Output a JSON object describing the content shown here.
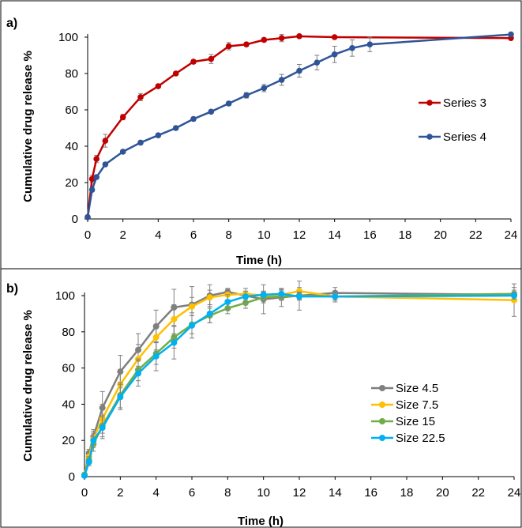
{
  "chart_data": [
    {
      "panel_label": "a)",
      "type": "line",
      "xlabel": "Time (h)",
      "ylabel": "Cumulative drug release %",
      "xlim": [
        0,
        24
      ],
      "ylim": [
        0,
        100
      ],
      "x_ticks": [
        0,
        2,
        4,
        6,
        8,
        10,
        12,
        14,
        16,
        18,
        20,
        22,
        24
      ],
      "y_ticks": [
        0,
        20,
        40,
        60,
        80,
        100
      ],
      "grid": false,
      "legend_position": "right",
      "series": [
        {
          "name": "Series 3",
          "color": "#C00000",
          "x": [
            0,
            0.25,
            0.5,
            1,
            2,
            3,
            4,
            5,
            6,
            7,
            8,
            9,
            10,
            11,
            12,
            14,
            24
          ],
          "y": [
            1,
            22,
            33,
            43,
            56,
            67,
            73,
            80,
            86.5,
            88,
            95,
            96,
            98.5,
            99.5,
            100.5,
            100,
            99.5
          ],
          "error": [
            1,
            2,
            2,
            3.5,
            1.5,
            2,
            1,
            1,
            1,
            2.5,
            2,
            1,
            1,
            2,
            0.5,
            0.5,
            0.5
          ]
        },
        {
          "name": "Series 4",
          "color": "#2F5597",
          "x": [
            0,
            0.25,
            0.5,
            1,
            2,
            3,
            4,
            5,
            6,
            7,
            8,
            9,
            10,
            11,
            12,
            13,
            14,
            15,
            16,
            24
          ],
          "y": [
            1,
            16,
            23,
            30,
            37,
            42,
            46,
            50,
            55,
            59,
            63.5,
            68,
            72,
            76.5,
            81.5,
            86,
            90.5,
            94,
            96,
            101.5
          ],
          "error": [
            1,
            1,
            1,
            1,
            1,
            1,
            1,
            1,
            1,
            1,
            1,
            1.5,
            2,
            3,
            3.5,
            4,
            4.5,
            4.5,
            4,
            1
          ]
        }
      ]
    },
    {
      "panel_label": "b)",
      "type": "line",
      "xlabel": "Time (h)",
      "ylabel": "Cumulative drug release %",
      "xlim": [
        0,
        24
      ],
      "ylim": [
        0,
        100
      ],
      "x_ticks": [
        0,
        2,
        4,
        6,
        8,
        10,
        12,
        14,
        16,
        18,
        20,
        22,
        24
      ],
      "y_ticks": [
        0,
        20,
        40,
        60,
        80,
        100
      ],
      "grid": false,
      "legend_position": "right",
      "series": [
        {
          "name": "Size 4.5",
          "color": "#7F7F7F",
          "x": [
            0,
            0.25,
            0.5,
            1,
            2,
            3,
            4,
            5,
            6,
            7,
            8,
            10,
            11,
            12,
            14,
            24
          ],
          "y": [
            1,
            13,
            22,
            38,
            58,
            70,
            83,
            93.5,
            95,
            100,
            102,
            98,
            99,
            100,
            101.5,
            100.5
          ],
          "error": [
            1,
            2,
            4,
            9,
            9,
            9,
            9,
            10,
            10,
            6,
            2,
            8,
            5,
            8,
            3,
            4
          ]
        },
        {
          "name": "Size 7.5",
          "color": "#FFC000",
          "x": [
            0,
            0.25,
            0.5,
            1,
            2,
            3,
            4,
            5,
            6,
            7,
            8,
            9,
            10,
            11,
            12,
            14,
            24
          ],
          "y": [
            1,
            11,
            21,
            32,
            51,
            65,
            77,
            87,
            94,
            99,
            100.5,
            101,
            100,
            100.5,
            102.5,
            99.5,
            97.5
          ],
          "error": [
            1,
            2,
            4,
            8,
            8,
            8,
            7,
            8,
            5,
            4,
            3,
            3,
            2,
            3,
            2,
            3,
            9
          ]
        },
        {
          "name": "Size 15",
          "color": "#70AD47",
          "x": [
            0,
            0.25,
            0.5,
            1,
            2,
            3,
            4,
            5,
            6,
            7,
            8,
            9,
            10,
            11,
            12,
            14,
            24
          ],
          "y": [
            1,
            9,
            18,
            28,
            45,
            59,
            68,
            77,
            84,
            89,
            93,
            96,
            99,
            99.5,
            100,
            99.5,
            101
          ],
          "error": [
            1,
            2,
            4,
            6,
            7,
            6,
            6,
            6,
            5,
            4,
            3,
            3,
            3,
            2,
            2,
            2,
            2
          ]
        },
        {
          "name": "Size 22.5",
          "color": "#00B0F0",
          "x": [
            0,
            0.25,
            0.5,
            1,
            2,
            3,
            4,
            5,
            6,
            7,
            8,
            9,
            10,
            11,
            12,
            14,
            24
          ],
          "y": [
            0.5,
            8,
            20,
            27,
            44,
            57,
            66.5,
            74,
            83.5,
            90,
            96.5,
            99.5,
            100.5,
            101,
            99.5,
            99.5,
            100
          ],
          "error": [
            1,
            2,
            4,
            6,
            7,
            7,
            8,
            9,
            7,
            5,
            4,
            3,
            2,
            2,
            2,
            2,
            2
          ]
        }
      ]
    }
  ]
}
